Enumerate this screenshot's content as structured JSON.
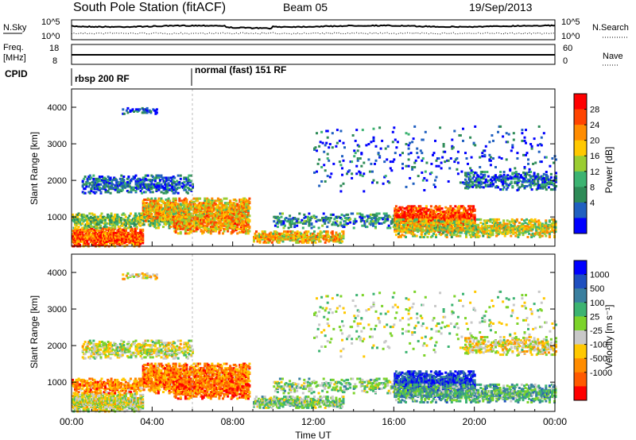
{
  "header": {
    "station": "South Pole Station (fitACF)",
    "beam": "Beam 05",
    "date": "19/Sep/2013"
  },
  "top_panels": {
    "nsky_label": "N.Sky",
    "nsky_ticks": [
      "10^5",
      "10^0"
    ],
    "nsearch_label": "N.Search",
    "nsearch_ticks": [
      "10^5",
      "10^0"
    ],
    "freq_label_line1": "Freq.",
    "freq_label_line2": "[MHz]",
    "freq_ticks": [
      "18",
      "8"
    ],
    "nave_label": "Nave",
    "nave_ticks": [
      "60",
      "0"
    ],
    "cpid_label": "CPID",
    "cpid_segments": [
      {
        "label": "rbsp 200 RF",
        "start_hour": 0
      },
      {
        "label": "normal (fast) 151 RF",
        "start_hour": 6
      }
    ]
  },
  "chart_data": [
    {
      "type": "heatmap",
      "name": "power-panel",
      "ylabel": "Slant Range [km]",
      "yticks": [
        "1000",
        "2000",
        "3000",
        "4000"
      ],
      "ylim": [
        200,
        4500
      ],
      "xlim": [
        0,
        24
      ],
      "colorbar_label": "Power [dB]",
      "colorbar_ticks": [
        "28",
        "24",
        "20",
        "16",
        "12",
        "8",
        "4"
      ],
      "colorbar_colors": [
        "#ff0000",
        "#ff4400",
        "#ff8c00",
        "#ffc800",
        "#9acd32",
        "#3cb371",
        "#2e8b57",
        "#2060c0",
        "#0000ff"
      ]
    },
    {
      "type": "heatmap",
      "name": "velocity-panel",
      "ylabel": "Slant Range [km]",
      "yticks": [
        "1000",
        "2000",
        "3000",
        "4000"
      ],
      "ylim": [
        200,
        4500
      ],
      "xlim": [
        0,
        24
      ],
      "xticks": [
        "00:00",
        "04:00",
        "08:00",
        "12:00",
        "16:00",
        "20:00",
        "00:00"
      ],
      "xlabel": "Time UT",
      "colorbar_label": "Velocity [m s⁻¹]",
      "colorbar_ticks": [
        "1000",
        "500",
        "100",
        "25",
        "-25",
        "-100",
        "-500",
        "-1000"
      ],
      "colorbar_colors": [
        "#0000ff",
        "#1f4fbf",
        "#3a7f9f",
        "#3cb371",
        "#7cd32a",
        "#c8c8c8",
        "#ffc800",
        "#ff8c00",
        "#ff5a00",
        "#ff0000"
      ]
    }
  ]
}
